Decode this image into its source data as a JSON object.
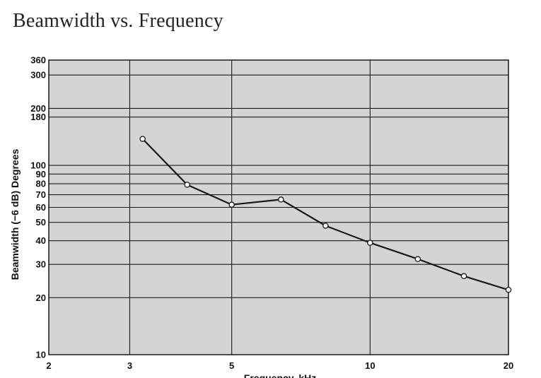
{
  "title": "Beamwidth vs. Frequency",
  "chart_data": {
    "type": "line",
    "title": "Beamwidth vs. Frequency",
    "xlabel": "Frequency, kHz",
    "ylabel": "Beamwidth (−6 dB) Degrees",
    "x_scale": "log",
    "y_scale": "log",
    "xlim": [
      2,
      20
    ],
    "ylim": [
      10,
      360
    ],
    "x_ticks": [
      2,
      3,
      5,
      10,
      20
    ],
    "y_ticks": [
      10,
      20,
      30,
      40,
      50,
      60,
      70,
      80,
      90,
      100,
      180,
      200,
      300,
      360
    ],
    "grid": true,
    "x": [
      3.2,
      4,
      5,
      6.4,
      8,
      10,
      12.7,
      16,
      20
    ],
    "series": [
      {
        "values": [
          138,
          79,
          62,
          66,
          48,
          39,
          32,
          26,
          22
        ]
      }
    ],
    "colors": {
      "plot_background": "#d4d4d4",
      "line": "#1a1a1a",
      "grid": "#1a1a1a"
    }
  }
}
